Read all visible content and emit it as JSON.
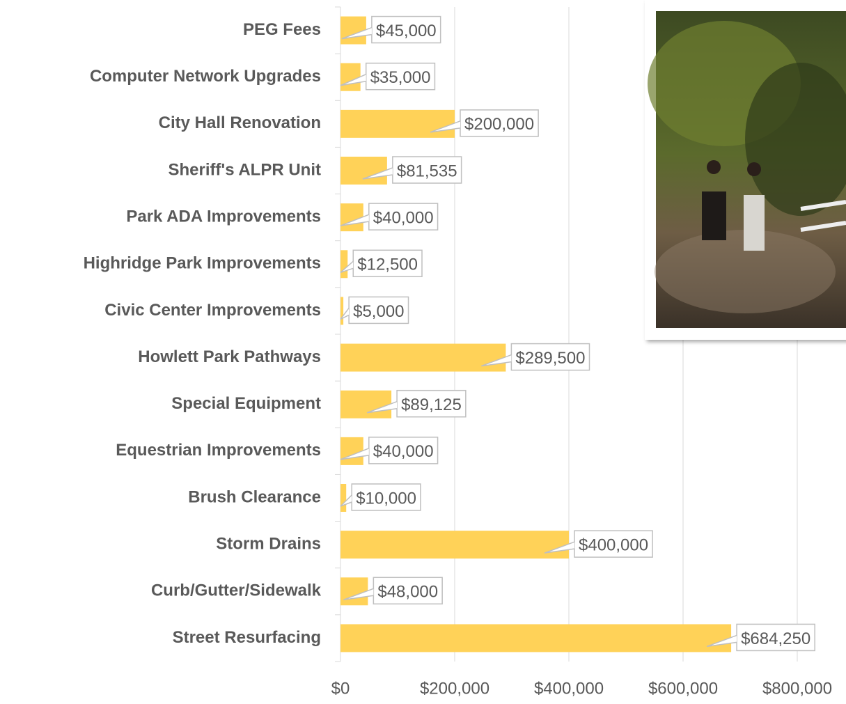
{
  "chart_data": {
    "type": "bar",
    "orientation": "horizontal",
    "color": "#FFD258",
    "categories": [
      "PEG Fees",
      "Computer Network Upgrades",
      "City Hall Renovation",
      "Sheriff's ALPR Unit",
      "Park ADA Improvements",
      "Highridge Park Improvements",
      "Civic Center Improvements",
      "Howlett Park Pathways",
      "Special Equipment",
      "Equestrian Improvements",
      "Brush Clearance",
      "Storm Drains",
      "Curb/Gutter/Sidewalk",
      "Street Resurfacing"
    ],
    "values": [
      45000,
      35000,
      200000,
      81535,
      40000,
      12500,
      5000,
      289500,
      89125,
      40000,
      10000,
      400000,
      48000,
      684250
    ],
    "value_labels": [
      "$45,000",
      "$35,000",
      "$200,000",
      "$81,535",
      "$40,000",
      "$12,500",
      "$5,000",
      "$289,500",
      "$89,125",
      "$40,000",
      "$10,000",
      "$400,000",
      "$48,000",
      "$684,250"
    ],
    "xlim": [
      0,
      800000
    ],
    "xticks": [
      {
        "value": 0,
        "label": "$0"
      },
      {
        "value": 200000,
        "label": "$200,000"
      },
      {
        "value": 400000,
        "label": "$400,000"
      },
      {
        "value": 600000,
        "label": "$600,000"
      },
      {
        "value": 800000,
        "label": "$800,000"
      }
    ],
    "grid": true
  }
}
